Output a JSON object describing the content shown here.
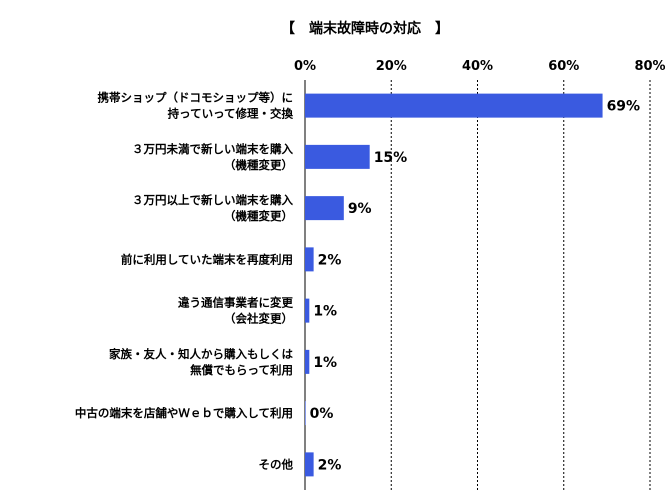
{
  "chart_data": {
    "type": "bar",
    "orientation": "horizontal",
    "title": "【　端末故障時の対応　】",
    "xlim": [
      0,
      80
    ],
    "ticks": [
      0,
      20,
      40,
      60,
      80
    ],
    "tick_labels": [
      "0%",
      "20%",
      "40%",
      "60%",
      "80%"
    ],
    "grid": true,
    "legend": "none",
    "bar_color": "#3a5ae0",
    "categories": [
      [
        "携帯ショップ（ドコモショップ等）に",
        "持っていって修理・交換"
      ],
      [
        "３万円未満で新しい端末を購入",
        "（機種変更）"
      ],
      [
        "３万円以上で新しい端末を購入",
        "（機種変更）"
      ],
      [
        "前に利用していた端末を再度利用"
      ],
      [
        "違う通信事業者に変更",
        "（会社変更）"
      ],
      [
        "家族・友人・知人から購入もしくは",
        "無償でもらって利用"
      ],
      [
        "中古の端末を店舗やＷｅｂで購入して利用"
      ],
      [
        "その他"
      ]
    ],
    "values": [
      69,
      15,
      9,
      2,
      1,
      1,
      0,
      2
    ],
    "value_labels": [
      "69%",
      "15%",
      "9%",
      "2%",
      "1%",
      "1%",
      "0%",
      "2%"
    ]
  }
}
